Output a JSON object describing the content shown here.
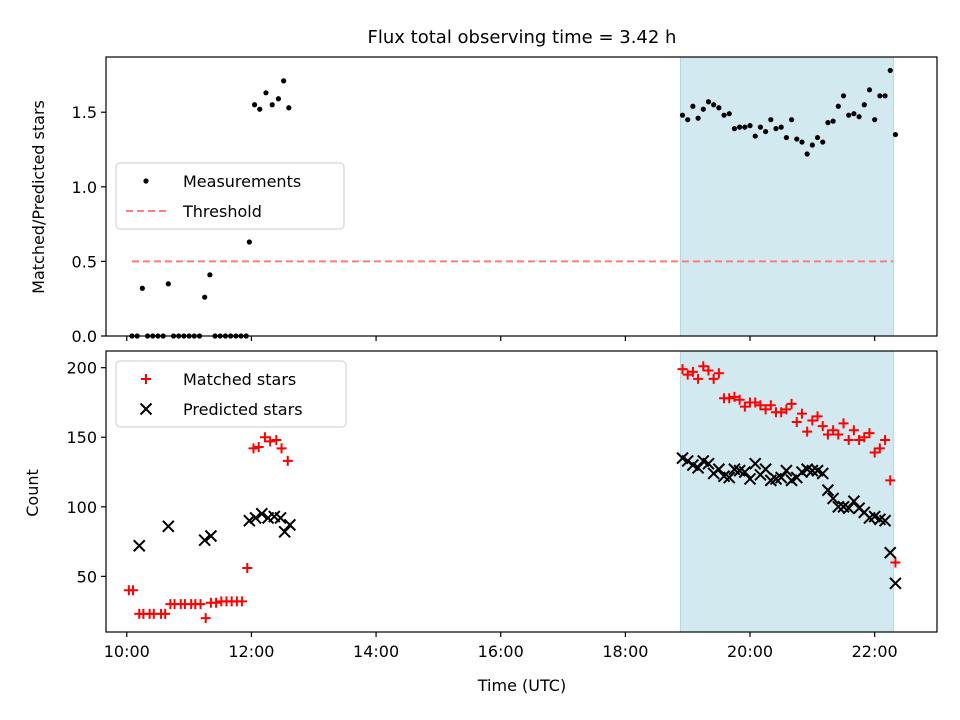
{
  "chart_data": {
    "type": "scatter",
    "title": "Flux total observing time = 3.42 h",
    "xlabel": "Time (UTC)",
    "x_ticks": [
      "10:00",
      "12:00",
      "14:00",
      "16:00",
      "18:00",
      "20:00",
      "22:00"
    ],
    "xlim": [
      "09:40",
      "23:00"
    ],
    "shaded_region": {
      "start": "18:53",
      "end": "22:18",
      "color": "#d3e9f0"
    },
    "panels": [
      {
        "ylabel": "Matched/Predicted stars",
        "ylim": [
          0,
          1.87
        ],
        "y_ticks": [
          "0.0",
          "0.5",
          "1.0",
          "1.5"
        ],
        "legend_position": "center-left",
        "series": [
          {
            "name": "Measurements",
            "marker": "dot",
            "color": "#000000",
            "points": [
              [
                "10:05",
                0.0
              ],
              [
                "10:10",
                0.0
              ],
              [
                "10:15",
                0.32
              ],
              [
                "10:20",
                0.0
              ],
              [
                "10:25",
                0.0
              ],
              [
                "10:30",
                0.0
              ],
              [
                "10:35",
                0.0
              ],
              [
                "10:40",
                0.35
              ],
              [
                "10:45",
                0.0
              ],
              [
                "10:50",
                0.0
              ],
              [
                "10:55",
                0.0
              ],
              [
                "11:00",
                0.0
              ],
              [
                "11:05",
                0.0
              ],
              [
                "11:10",
                0.0
              ],
              [
                "11:15",
                0.26
              ],
              [
                "11:20",
                0.41
              ],
              [
                "11:25",
                0.0
              ],
              [
                "11:30",
                0.0
              ],
              [
                "11:35",
                0.0
              ],
              [
                "11:40",
                0.0
              ],
              [
                "11:45",
                0.0
              ],
              [
                "11:50",
                0.0
              ],
              [
                "11:55",
                0.0
              ],
              [
                "11:58",
                0.63
              ],
              [
                "12:03",
                1.55
              ],
              [
                "12:08",
                1.52
              ],
              [
                "12:14",
                1.63
              ],
              [
                "12:20",
                1.55
              ],
              [
                "12:26",
                1.59
              ],
              [
                "12:31",
                1.71
              ],
              [
                "12:36",
                1.53
              ],
              [
                "18:55",
                1.48
              ],
              [
                "19:00",
                1.45
              ],
              [
                "19:05",
                1.54
              ],
              [
                "19:10",
                1.46
              ],
              [
                "19:15",
                1.52
              ],
              [
                "19:20",
                1.57
              ],
              [
                "19:25",
                1.55
              ],
              [
                "19:30",
                1.53
              ],
              [
                "19:35",
                1.48
              ],
              [
                "19:40",
                1.49
              ],
              [
                "19:45",
                1.39
              ],
              [
                "19:50",
                1.4
              ],
              [
                "19:55",
                1.4
              ],
              [
                "20:00",
                1.41
              ],
              [
                "20:05",
                1.34
              ],
              [
                "20:10",
                1.4
              ],
              [
                "20:15",
                1.37
              ],
              [
                "20:20",
                1.45
              ],
              [
                "20:25",
                1.39
              ],
              [
                "20:30",
                1.4
              ],
              [
                "20:35",
                1.33
              ],
              [
                "20:40",
                1.45
              ],
              [
                "20:45",
                1.32
              ],
              [
                "20:50",
                1.3
              ],
              [
                "20:55",
                1.22
              ],
              [
                "21:00",
                1.28
              ],
              [
                "21:05",
                1.33
              ],
              [
                "21:10",
                1.3
              ],
              [
                "21:15",
                1.43
              ],
              [
                "21:20",
                1.44
              ],
              [
                "21:25",
                1.54
              ],
              [
                "21:30",
                1.61
              ],
              [
                "21:35",
                1.48
              ],
              [
                "21:40",
                1.49
              ],
              [
                "21:45",
                1.47
              ],
              [
                "21:50",
                1.55
              ],
              [
                "21:55",
                1.65
              ],
              [
                "22:00",
                1.45
              ],
              [
                "22:05",
                1.61
              ],
              [
                "22:10",
                1.61
              ],
              [
                "22:15",
                1.78
              ],
              [
                "22:20",
                1.35
              ]
            ]
          },
          {
            "name": "Threshold",
            "marker": "dashed-line",
            "color": "#ff7b7b",
            "points": [
              [
                "10:05",
                0.5
              ],
              [
                "22:18",
                0.5
              ]
            ]
          }
        ]
      },
      {
        "ylabel": "Count",
        "ylim": [
          10,
          212
        ],
        "y_ticks": [
          "50",
          "100",
          "150",
          "200"
        ],
        "legend_position": "upper-left",
        "series": [
          {
            "name": "Matched stars",
            "marker": "plus",
            "color": "#ff0000",
            "points": [
              [
                "10:02",
                40
              ],
              [
                "10:06",
                40
              ],
              [
                "10:12",
                23
              ],
              [
                "10:16",
                23
              ],
              [
                "10:22",
                23
              ],
              [
                "10:26",
                23
              ],
              [
                "10:33",
                23
              ],
              [
                "10:37",
                23
              ],
              [
                "10:42",
                30
              ],
              [
                "10:46",
                30
              ],
              [
                "10:52",
                30
              ],
              [
                "10:56",
                30
              ],
              [
                "11:02",
                30
              ],
              [
                "11:06",
                30
              ],
              [
                "11:11",
                30
              ],
              [
                "11:16",
                20
              ],
              [
                "11:21",
                31
              ],
              [
                "11:26",
                31
              ],
              [
                "11:31",
                32
              ],
              [
                "11:36",
                32
              ],
              [
                "11:41",
                32
              ],
              [
                "11:46",
                32
              ],
              [
                "11:51",
                32
              ],
              [
                "11:56",
                56
              ],
              [
                "12:02",
                142
              ],
              [
                "12:07",
                143
              ],
              [
                "12:13",
                150
              ],
              [
                "12:18",
                147
              ],
              [
                "12:24",
                148
              ],
              [
                "12:29",
                142
              ],
              [
                "12:35",
                133
              ],
              [
                "18:55",
                199
              ],
              [
                "19:00",
                195
              ],
              [
                "19:05",
                197
              ],
              [
                "19:10",
                192
              ],
              [
                "19:15",
                201
              ],
              [
                "19:20",
                198
              ],
              [
                "19:25",
                192
              ],
              [
                "19:30",
                196
              ],
              [
                "19:35",
                178
              ],
              [
                "19:40",
                178
              ],
              [
                "19:45",
                179
              ],
              [
                "19:50",
                177
              ],
              [
                "19:55",
                172
              ],
              [
                "20:00",
                175
              ],
              [
                "20:05",
                175
              ],
              [
                "20:10",
                173
              ],
              [
                "20:15",
                170
              ],
              [
                "20:20",
                173
              ],
              [
                "20:25",
                168
              ],
              [
                "20:30",
                168
              ],
              [
                "20:35",
                170
              ],
              [
                "20:40",
                174
              ],
              [
                "20:45",
                161
              ],
              [
                "20:50",
                167
              ],
              [
                "20:55",
                154
              ],
              [
                "21:00",
                162
              ],
              [
                "21:05",
                165
              ],
              [
                "21:10",
                158
              ],
              [
                "21:15",
                152
              ],
              [
                "21:20",
                155
              ],
              [
                "21:25",
                152
              ],
              [
                "21:30",
                160
              ],
              [
                "21:35",
                148
              ],
              [
                "21:40",
                155
              ],
              [
                "21:45",
                148
              ],
              [
                "21:50",
                150
              ],
              [
                "21:55",
                153
              ],
              [
                "22:00",
                139
              ],
              [
                "22:05",
                142
              ],
              [
                "22:10",
                148
              ],
              [
                "22:15",
                119
              ],
              [
                "22:20",
                60
              ]
            ]
          },
          {
            "name": "Predicted stars",
            "marker": "x",
            "color": "#000000",
            "points": [
              [
                "10:12",
                72
              ],
              [
                "10:40",
                86
              ],
              [
                "11:15",
                76
              ],
              [
                "11:21",
                79
              ],
              [
                "11:58",
                90
              ],
              [
                "12:04",
                92
              ],
              [
                "12:10",
                95
              ],
              [
                "12:16",
                92
              ],
              [
                "12:22",
                93
              ],
              [
                "12:28",
                92
              ],
              [
                "12:32",
                82
              ],
              [
                "12:37",
                87
              ],
              [
                "18:55",
                135
              ],
              [
                "19:00",
                133
              ],
              [
                "19:05",
                130
              ],
              [
                "19:10",
                128
              ],
              [
                "19:15",
                133
              ],
              [
                "19:20",
                131
              ],
              [
                "19:25",
                124
              ],
              [
                "19:30",
                127
              ],
              [
                "19:35",
                122
              ],
              [
                "19:40",
                121
              ],
              [
                "19:45",
                127
              ],
              [
                "19:50",
                126
              ],
              [
                "19:55",
                125
              ],
              [
                "20:00",
                120
              ],
              [
                "20:05",
                131
              ],
              [
                "20:10",
                123
              ],
              [
                "20:15",
                127
              ],
              [
                "20:20",
                119
              ],
              [
                "20:25",
                120
              ],
              [
                "20:30",
                121
              ],
              [
                "20:35",
                126
              ],
              [
                "20:40",
                119
              ],
              [
                "20:45",
                121
              ],
              [
                "20:50",
                125
              ],
              [
                "20:55",
                127
              ],
              [
                "21:00",
                126
              ],
              [
                "21:05",
                126
              ],
              [
                "21:10",
                124
              ],
              [
                "21:15",
                112
              ],
              [
                "21:20",
                106
              ],
              [
                "21:25",
                100
              ],
              [
                "21:30",
                100
              ],
              [
                "21:35",
                99
              ],
              [
                "21:40",
                104
              ],
              [
                "21:45",
                99
              ],
              [
                "21:50",
                96
              ],
              [
                "21:55",
                92
              ],
              [
                "22:00",
                93
              ],
              [
                "22:05",
                91
              ],
              [
                "22:10",
                90
              ],
              [
                "22:15",
                67
              ],
              [
                "22:20",
                45
              ]
            ]
          }
        ]
      }
    ]
  }
}
